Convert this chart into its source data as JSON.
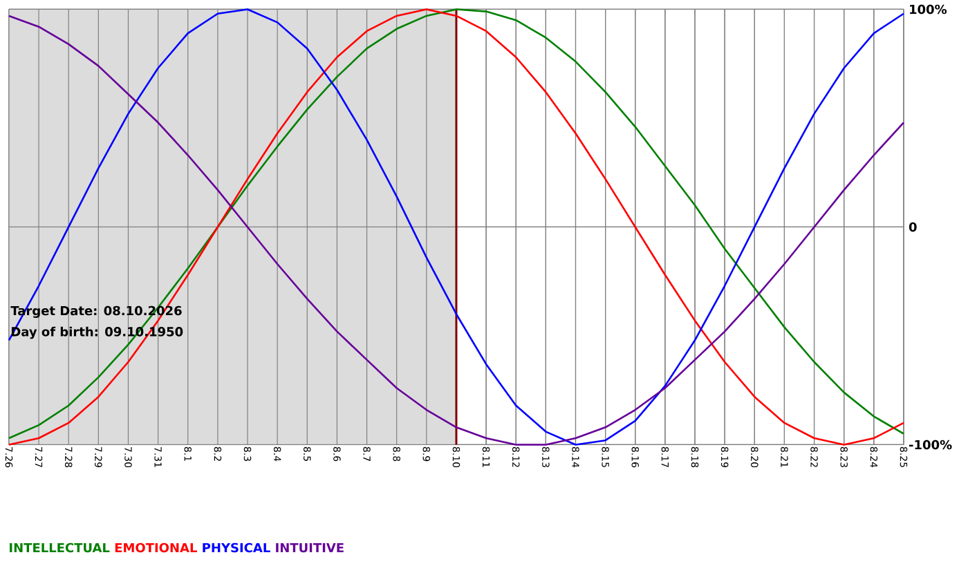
{
  "chart_data": {
    "type": "line",
    "categories": [
      "7.26",
      "7.27",
      "7.28",
      "7.29",
      "7.30",
      "7.31",
      "8.1",
      "8.2",
      "8.3",
      "8.4",
      "8.5",
      "8.6",
      "8.7",
      "8.8",
      "8.9",
      "8.10",
      "8.11",
      "8.12",
      "8.13",
      "8.14",
      "8.15",
      "8.16",
      "8.17",
      "8.18",
      "8.19",
      "8.20",
      "8.21",
      "8.22",
      "8.23",
      "8.24",
      "8.25"
    ],
    "series": [
      {
        "name": "INTELLECTUAL",
        "color": "#008000",
        "values": [
          -97,
          -91,
          -82,
          -69,
          -54,
          -37,
          -19,
          0,
          19,
          37,
          54,
          69,
          82,
          91,
          97,
          100,
          99,
          95,
          87,
          76,
          62,
          46,
          28,
          10,
          -10,
          -28,
          -46,
          -62,
          -76,
          -87,
          -95
        ]
      },
      {
        "name": "EMOTIONAL",
        "color": "#ff0000",
        "values": [
          -100,
          -97,
          -90,
          -78,
          -62,
          -43,
          -22,
          0,
          22,
          43,
          62,
          78,
          90,
          97,
          100,
          97,
          90,
          78,
          62,
          43,
          22,
          0,
          -22,
          -43,
          -62,
          -78,
          -90,
          -97,
          -100,
          -97,
          -90
        ]
      },
      {
        "name": "PHYSICAL",
        "color": "#0000ff",
        "values": [
          -52,
          -27,
          0,
          27,
          52,
          73,
          89,
          98,
          100,
          94,
          82,
          63,
          40,
          14,
          -14,
          -40,
          -63,
          -82,
          -94,
          -100,
          -98,
          -89,
          -73,
          -52,
          -27,
          0,
          27,
          52,
          73,
          89,
          98
        ]
      },
      {
        "name": "INTUITIVE",
        "color": "#660099",
        "values": [
          97,
          92,
          84,
          74,
          61,
          48,
          33,
          17,
          0,
          -17,
          -33,
          -48,
          -61,
          -74,
          -84,
          -92,
          -97,
          -100,
          -100,
          -97,
          -92,
          -84,
          -74,
          -61,
          -48,
          -33,
          -17,
          0,
          17,
          33,
          48
        ]
      }
    ],
    "ylim": [
      -100,
      100
    ],
    "yticks": [
      {
        "value": -100,
        "label": "-100%"
      },
      0,
      {
        "value": 100,
        "label": "100%"
      }
    ],
    "grid": true,
    "legend": "bottom",
    "line_style": "solid",
    "ref_lines": [
      {
        "axis": "x",
        "value": "8.10",
        "color": "#800000"
      }
    ],
    "bands": [
      {
        "axis": "x",
        "from": "7.26",
        "to": "8.10",
        "color": "#dcdcdc"
      }
    ],
    "annotations": [
      "Target Date: 08.10.2026",
      "Day of birth: 09.10.1950"
    ]
  }
}
